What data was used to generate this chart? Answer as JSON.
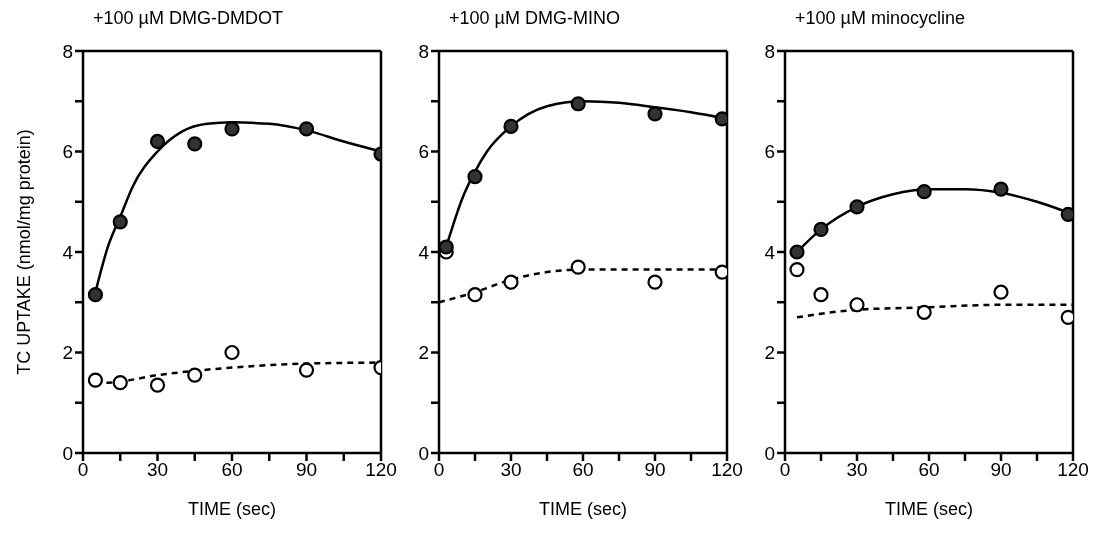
{
  "chart_data": [
    {
      "type": "scatter",
      "title": "+100 µM DMG-DMDOT",
      "xlabel": "TIME (sec)",
      "ylabel": "TC UPTAKE (nmol/mg protein)",
      "xlim": [
        0,
        120
      ],
      "ylim": [
        0,
        8
      ],
      "xticks": [
        0,
        {
          "value": 15,
          "label": null
        },
        30,
        {
          "value": 45,
          "label": null
        },
        60,
        {
          "value": 75,
          "label": null
        },
        90,
        {
          "value": 105,
          "label": null
        },
        120
      ],
      "yticks": [
        0,
        {
          "value": 1,
          "label": null
        },
        2,
        {
          "value": 3,
          "label": null
        },
        4,
        {
          "value": 5,
          "label": null
        },
        6,
        {
          "value": 7,
          "label": null
        },
        8
      ],
      "series": [
        {
          "type": "line",
          "color": "#000000",
          "line_style": "solid",
          "marker": "none",
          "x": [
            5,
            10,
            15,
            20,
            30,
            40,
            50,
            60,
            75,
            90,
            105,
            120
          ],
          "values": [
            3.2,
            4.1,
            4.7,
            5.3,
            6.0,
            6.4,
            6.55,
            6.58,
            6.55,
            6.42,
            6.2,
            6.0
          ]
        },
        {
          "type": "line",
          "color": "#000000",
          "line_style": "dashed",
          "marker": "none",
          "x": [
            5,
            10,
            30,
            60,
            90,
            120
          ],
          "values": [
            1.4,
            1.4,
            1.55,
            1.7,
            1.78,
            1.8
          ]
        },
        {
          "type": "scatter",
          "color": "#333333",
          "marker": "circle",
          "x": [
            5,
            15,
            30,
            45,
            60,
            90,
            120
          ],
          "values": [
            3.15,
            4.6,
            6.2,
            6.15,
            6.45,
            6.45,
            5.95
          ]
        },
        {
          "type": "scatter",
          "color": "#ffffff",
          "marker": "circle",
          "x": [
            5,
            15,
            30,
            45,
            60,
            90,
            120
          ],
          "values": [
            1.45,
            1.4,
            1.35,
            1.55,
            2.0,
            1.65,
            1.7
          ]
        }
      ]
    },
    {
      "type": "scatter",
      "title": "+100 µM DMG-MINO",
      "xlabel": "TIME (sec)",
      "xlim": [
        0,
        120
      ],
      "ylim": [
        0,
        8
      ],
      "xticks": [
        0,
        {
          "value": 15,
          "label": null
        },
        30,
        {
          "value": 45,
          "label": null
        },
        60,
        {
          "value": 75,
          "label": null
        },
        90,
        {
          "value": 105,
          "label": null
        },
        120
      ],
      "yticks": [
        0,
        {
          "value": 1,
          "label": null
        },
        2,
        {
          "value": 3,
          "label": null
        },
        4,
        {
          "value": 5,
          "label": null
        },
        6,
        {
          "value": 7,
          "label": null
        },
        8
      ],
      "series": [
        {
          "type": "line",
          "color": "#000000",
          "line_style": "solid",
          "marker": "none",
          "x": [
            3,
            10,
            15,
            20,
            30,
            45,
            60,
            75,
            90,
            105,
            120
          ],
          "values": [
            4.1,
            5.1,
            5.6,
            6.0,
            6.5,
            6.9,
            7.0,
            6.97,
            6.88,
            6.78,
            6.65
          ]
        },
        {
          "type": "line",
          "color": "#000000",
          "line_style": "dashed",
          "marker": "none",
          "x": [
            0,
            15,
            30,
            45,
            60,
            90,
            120
          ],
          "values": [
            3.0,
            3.2,
            3.45,
            3.6,
            3.65,
            3.65,
            3.65
          ]
        },
        {
          "type": "scatter",
          "color": "#ffffff",
          "marker": "circle",
          "x": [
            3,
            15,
            30,
            58,
            90,
            118
          ],
          "values": [
            4.0,
            3.15,
            3.4,
            3.7,
            3.4,
            3.6
          ]
        },
        {
          "type": "scatter",
          "color": "#333333",
          "marker": "circle",
          "x": [
            3,
            15,
            30,
            58,
            90,
            118
          ],
          "values": [
            4.1,
            5.5,
            6.5,
            6.95,
            6.75,
            6.65
          ]
        }
      ]
    },
    {
      "type": "scatter",
      "title": "+100 µM minocycline",
      "xlabel": "TIME (sec)",
      "xlim": [
        0,
        120
      ],
      "ylim": [
        0,
        8
      ],
      "xticks": [
        0,
        {
          "value": 15,
          "label": null
        },
        30,
        {
          "value": 45,
          "label": null
        },
        60,
        {
          "value": 75,
          "label": null
        },
        90,
        {
          "value": 105,
          "label": null
        },
        120
      ],
      "yticks": [
        0,
        {
          "value": 1,
          "label": null
        },
        2,
        {
          "value": 3,
          "label": null
        },
        4,
        {
          "value": 5,
          "label": null
        },
        6,
        {
          "value": 7,
          "label": null
        },
        8
      ],
      "series": [
        {
          "type": "line",
          "color": "#000000",
          "line_style": "solid",
          "marker": "none",
          "x": [
            5,
            15,
            30,
            45,
            60,
            75,
            90,
            105,
            120
          ],
          "values": [
            4.0,
            4.45,
            4.9,
            5.15,
            5.25,
            5.25,
            5.18,
            5.0,
            4.75
          ]
        },
        {
          "type": "line",
          "color": "#000000",
          "line_style": "dashed",
          "marker": "none",
          "x": [
            5,
            30,
            60,
            90,
            120
          ],
          "values": [
            2.7,
            2.85,
            2.9,
            2.95,
            2.95
          ]
        },
        {
          "type": "scatter",
          "color": "#333333",
          "marker": "circle",
          "x": [
            5,
            15,
            30,
            58,
            90,
            118
          ],
          "values": [
            4.0,
            4.45,
            4.9,
            5.2,
            5.25,
            4.75
          ]
        },
        {
          "type": "scatter",
          "color": "#ffffff",
          "marker": "circle",
          "x": [
            5,
            15,
            30,
            58,
            90,
            118
          ],
          "values": [
            3.65,
            3.15,
            2.95,
            2.8,
            3.2,
            2.7
          ]
        }
      ]
    }
  ]
}
